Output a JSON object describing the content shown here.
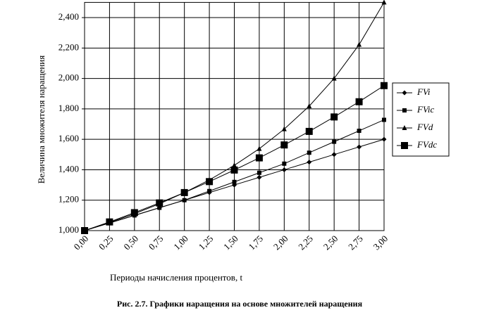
{
  "chart_data": {
    "type": "line",
    "caption": "Рис. 2.7. Графики наращения на основе множителей наращения",
    "x_label": "Периоды начисления процентов, t",
    "y_label": "Величина множителя наращения",
    "categories": [
      "0,00",
      "0,25",
      "0,50",
      "0,75",
      "1,00",
      "1,25",
      "1,50",
      "1,75",
      "2,00",
      "2,25",
      "2,50",
      "2,75",
      "3,00"
    ],
    "series": [
      {
        "name": "FVi",
        "color": "#000000",
        "marker": "diamond",
        "values": [
          1,
          1.05,
          1.1,
          1.15,
          1.2,
          1.25,
          1.3,
          1.35,
          1.4,
          1.45,
          1.5,
          1.55,
          1.6
        ]
      },
      {
        "name": "FVic",
        "color": "#000000",
        "marker": "square",
        "values": [
          1,
          1.05,
          1.1,
          1.15,
          1.2,
          1.26,
          1.32,
          1.38,
          1.44,
          1.512,
          1.584,
          1.656,
          1.728
        ]
      },
      {
        "name": "FVd",
        "color": "#000000",
        "marker": "triangle",
        "values": [
          1,
          1.053,
          1.111,
          1.176,
          1.25,
          1.333,
          1.429,
          1.538,
          1.667,
          1.818,
          2,
          2.222,
          2.5
        ]
      },
      {
        "name": "FVdc",
        "color": "#000000",
        "marker": "big-square",
        "values": [
          1,
          1.057,
          1.118,
          1.182,
          1.25,
          1.322,
          1.398,
          1.478,
          1.563,
          1.652,
          1.747,
          1.847,
          1.953
        ]
      }
    ],
    "ylim": [
      1,
      2.5
    ],
    "yticks": [
      {
        "value": 1,
        "label": "1,000"
      },
      {
        "value": 1.2,
        "label": "1,200"
      },
      {
        "value": 1.4,
        "label": "1,400"
      },
      {
        "value": 1.6,
        "label": "1,600"
      },
      {
        "value": 1.8,
        "label": "1,800"
      },
      {
        "value": 2,
        "label": "2,000"
      },
      {
        "value": 2.2,
        "label": "2,200"
      },
      {
        "value": 2.4,
        "label": "2,400"
      }
    ],
    "grid": true,
    "legend": "right"
  }
}
